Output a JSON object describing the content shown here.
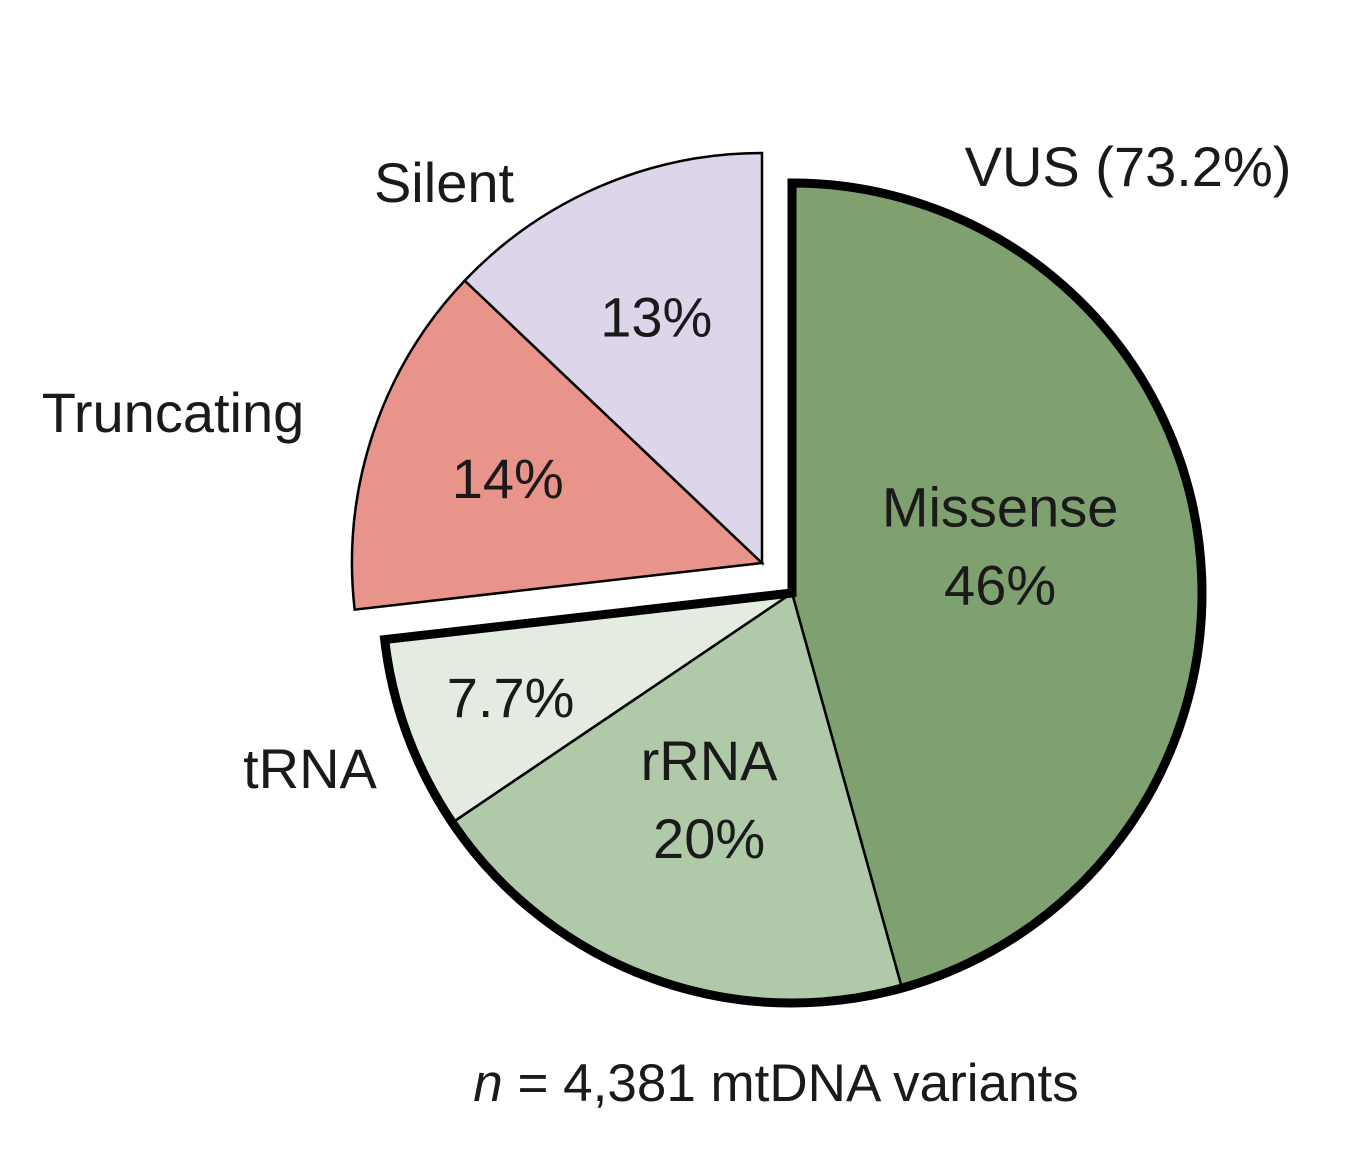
{
  "chart_data": {
    "type": "pie",
    "group_label": "VUS (73.2%)",
    "footnote": {
      "variable": "n",
      "text": " = 4,381 mtDNA variants"
    },
    "slices": [
      {
        "name": "Missense",
        "value": 46,
        "value_label": "46%",
        "color": "#7fa06f",
        "group": "VUS",
        "label_inside": true
      },
      {
        "name": "rRNA",
        "value": 20,
        "value_label": "20%",
        "color": "#b0c9a8",
        "group": "VUS",
        "label_inside": true
      },
      {
        "name": "tRNA",
        "value": 7.7,
        "value_label": "7.7%",
        "color": "#e4ebe1",
        "group": "VUS",
        "label_inside": false
      },
      {
        "name": "Truncating",
        "value": 14,
        "value_label": "14%",
        "color": "#e9948b",
        "group": "other",
        "label_inside": false
      },
      {
        "name": "Silent",
        "value": 13,
        "value_label": "13%",
        "color": "#ddd6ea",
        "group": "other",
        "label_inside": false
      }
    ],
    "start": "top, clockwise",
    "exploded_groups": [
      "VUS",
      "other"
    ]
  }
}
